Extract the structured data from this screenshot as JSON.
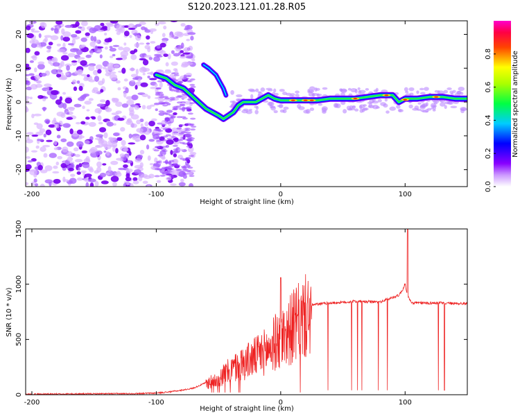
{
  "figure": {
    "title": "S120.2023.121.01.28.R05"
  },
  "chart_data": [
    {
      "type": "heatmap",
      "title": "S120.2023.121.01.28.R05",
      "xlabel": "Height of straight line (km)",
      "ylabel": "Frequency (Hz)",
      "xlim": [
        -205,
        150
      ],
      "ylim": [
        -25,
        24
      ],
      "xticks": [
        -200,
        -100,
        0,
        100
      ],
      "yticks": [
        -20,
        -10,
        0,
        10,
        20
      ],
      "grid": false,
      "colorbar": {
        "label": "Normalized spectral amplitude",
        "range": [
          0.0,
          1.0
        ],
        "ticks": [
          0.0,
          0.2,
          0.4,
          0.6,
          0.8
        ],
        "tick_labels": [
          "0.0",
          "0.2",
          "0.4",
          "0.6",
          "0.8"
        ],
        "colors": [
          "#ffffff",
          "#8800ff",
          "#0000ff",
          "#00ffff",
          "#00ff00",
          "#ffff00",
          "#ff0000",
          "#ff00aa"
        ]
      },
      "ridge": {
        "x": [
          -100,
          -92,
          -85,
          -78,
          -72,
          -66,
          -60,
          -55,
          -50,
          -46,
          -42,
          -38,
          -34,
          -30,
          -25,
          -20,
          -15,
          -10,
          -5,
          0,
          10,
          20,
          30,
          40,
          50,
          60,
          70,
          80,
          90,
          95,
          100,
          110,
          120,
          130,
          140,
          150
        ],
        "y": [
          8,
          7,
          5,
          4,
          2,
          0,
          -2,
          -3,
          -4,
          -5,
          -4,
          -3,
          -1,
          0,
          0,
          0,
          1,
          2,
          1,
          0.5,
          0.5,
          0.5,
          0.5,
          1,
          1,
          1,
          1.5,
          2,
          2,
          0,
          1,
          1,
          1.5,
          1.5,
          1,
          1
        ]
      },
      "branch": {
        "x": [
          -62,
          -58,
          -55,
          -52,
          -49,
          -46,
          -44
        ],
        "y": [
          11,
          10,
          9,
          8,
          6,
          4,
          2
        ]
      }
    },
    {
      "type": "line",
      "xlabel": "Height of straight line (km)",
      "ylabel": "SNR (10 * v/v)",
      "xlim": [
        -205,
        150
      ],
      "ylim": [
        0,
        1500
      ],
      "xticks": [
        -200,
        -100,
        0,
        100
      ],
      "yticks": [
        0,
        500,
        1000,
        1500
      ],
      "grid": false,
      "series": [
        {
          "color": "#ee2222",
          "x": [
            -205,
            -150,
            -120,
            -100,
            -90,
            -80,
            -70,
            -60,
            -50,
            -40,
            -30,
            -20,
            -10,
            -5,
            0,
            5,
            10,
            15,
            20,
            25,
            30,
            40,
            50,
            60,
            70,
            80,
            85,
            90,
            95,
            98,
            100,
            102,
            105,
            110,
            120,
            130,
            140,
            150
          ],
          "y": [
            5,
            8,
            10,
            15,
            25,
            40,
            60,
            110,
            170,
            250,
            320,
            380,
            450,
            520,
            560,
            620,
            680,
            730,
            780,
            810,
            820,
            830,
            835,
            845,
            840,
            840,
            860,
            880,
            900,
            950,
            1000,
            900,
            830,
            830,
            830,
            830,
            825,
            825
          ]
        }
      ],
      "peaks": {
        "x": [
          0,
          102
        ],
        "y": [
          1060,
          1570
        ]
      }
    }
  ]
}
